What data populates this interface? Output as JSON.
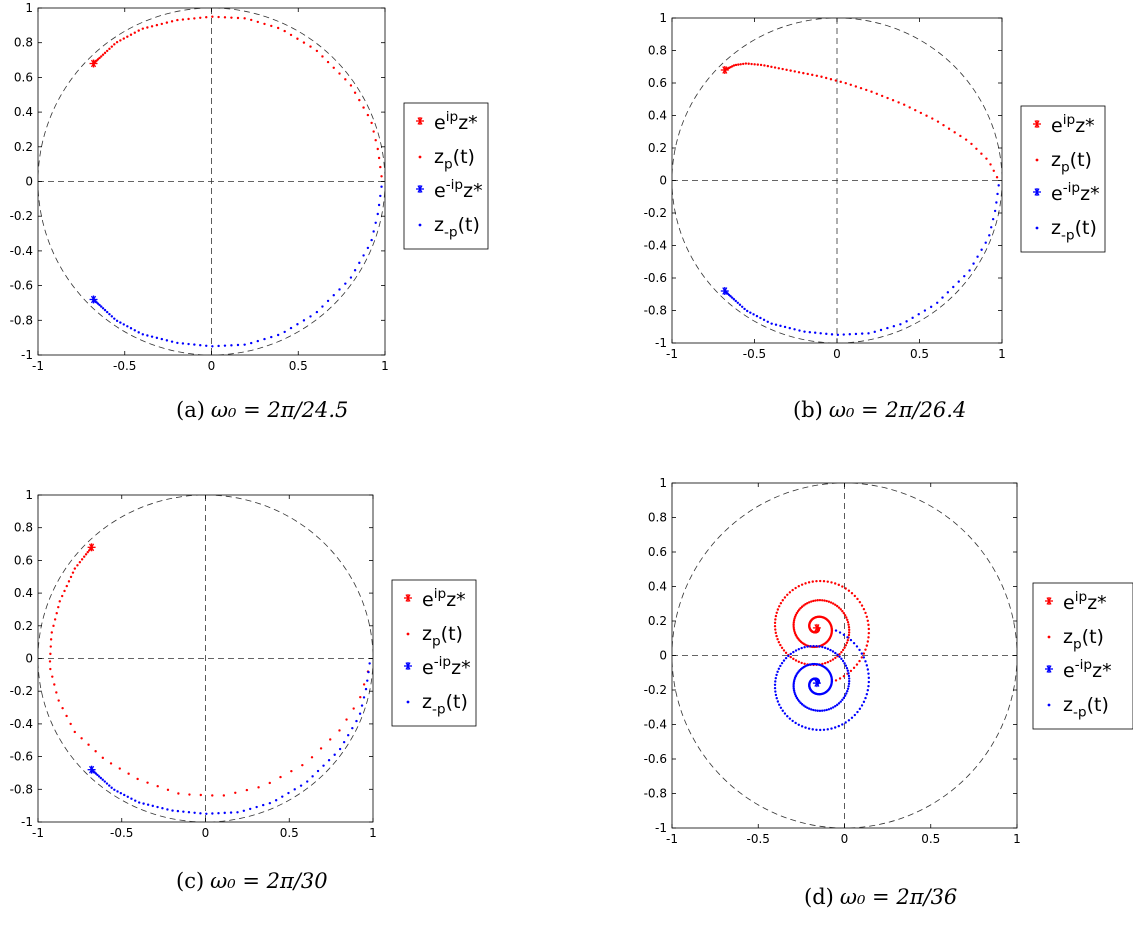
{
  "chart_data": [
    {
      "type": "scatter",
      "panel": "a",
      "caption": {
        "label": "(a)",
        "math": "ω₀ = 2π/24.5"
      },
      "xlim": [
        -1,
        1
      ],
      "ylim": [
        -1,
        1
      ],
      "xticks": [
        "-1",
        "-0.5",
        "0",
        "0.5",
        "1"
      ],
      "yticks": [
        "-1",
        "-0.8",
        "-0.6",
        "-0.4",
        "-0.2",
        "0",
        "0.2",
        "0.4",
        "0.6",
        "0.8",
        "1"
      ],
      "grid": false,
      "reference": [
        "unit circle (dashed)",
        "real axis (dashed)",
        "imaginary axis (dashed)"
      ],
      "legend": {
        "position": "right",
        "entries": [
          {
            "marker": "*",
            "color": "#ff0000",
            "text": "e^{ip}z*"
          },
          {
            "marker": ".",
            "color": "#ff0000",
            "text": "z_p(t)"
          },
          {
            "marker": "*",
            "color": "#0000ff",
            "text": "e^{-ip}z*"
          },
          {
            "marker": ".",
            "color": "#0000ff",
            "text": "z_{-p}(t)"
          }
        ]
      },
      "star_points": [
        {
          "series": "e^{ip}z*",
          "x": -0.68,
          "y": 0.68,
          "color": "#ff0000"
        },
        {
          "series": "e^{-ip}z*",
          "x": -0.68,
          "y": -0.68,
          "color": "#0000ff"
        }
      ],
      "trajectories": [
        {
          "series": "z_p(t)",
          "color": "#ff0000",
          "kind": "path",
          "waypoints": [
            [
              -0.68,
              0.68
            ],
            [
              -0.55,
              0.8
            ],
            [
              -0.4,
              0.88
            ],
            [
              -0.2,
              0.93
            ],
            [
              0.0,
              0.95
            ],
            [
              0.2,
              0.94
            ],
            [
              0.4,
              0.88
            ],
            [
              0.6,
              0.76
            ],
            [
              0.8,
              0.56
            ],
            [
              0.92,
              0.35
            ],
            [
              0.96,
              0.18
            ],
            [
              0.98,
              0.03
            ]
          ]
        },
        {
          "series": "z_{-p}(t)",
          "color": "#0000ff",
          "kind": "path",
          "waypoints": [
            [
              -0.68,
              -0.68
            ],
            [
              -0.55,
              -0.8
            ],
            [
              -0.4,
              -0.88
            ],
            [
              -0.2,
              -0.93
            ],
            [
              0.0,
              -0.95
            ],
            [
              0.2,
              -0.94
            ],
            [
              0.4,
              -0.88
            ],
            [
              0.6,
              -0.76
            ],
            [
              0.8,
              -0.56
            ],
            [
              0.92,
              -0.35
            ],
            [
              0.96,
              -0.18
            ],
            [
              0.98,
              -0.03
            ]
          ]
        }
      ]
    },
    {
      "type": "scatter",
      "panel": "b",
      "caption": {
        "label": "(b)",
        "math": "ω₀ = 2π/26.4"
      },
      "xlim": [
        -1,
        1
      ],
      "ylim": [
        -1,
        1
      ],
      "xticks": [
        "-1",
        "-0.5",
        "0",
        "0.5",
        "1"
      ],
      "yticks": [
        "-1",
        "-0.8",
        "-0.6",
        "-0.4",
        "-0.2",
        "0",
        "0.2",
        "0.4",
        "0.6",
        "0.8",
        "1"
      ],
      "grid": false,
      "reference": [
        "unit circle (dashed)",
        "real axis (dashed)",
        "imaginary axis (dashed)"
      ],
      "legend": {
        "position": "right",
        "entries": [
          {
            "marker": "*",
            "color": "#ff0000",
            "text": "e^{ip}z*"
          },
          {
            "marker": ".",
            "color": "#ff0000",
            "text": "z_p(t)"
          },
          {
            "marker": "*",
            "color": "#0000ff",
            "text": "e^{-ip}z*"
          },
          {
            "marker": ".",
            "color": "#0000ff",
            "text": "z_{-p}(t)"
          }
        ]
      },
      "star_points": [
        {
          "series": "e^{ip}z*",
          "x": -0.68,
          "y": 0.68,
          "color": "#ff0000"
        },
        {
          "series": "e^{-ip}z*",
          "x": -0.68,
          "y": -0.68,
          "color": "#0000ff"
        }
      ],
      "trajectories": [
        {
          "series": "z_p(t)",
          "color": "#ff0000",
          "kind": "path",
          "waypoints": [
            [
              -0.68,
              0.68
            ],
            [
              -0.62,
              0.71
            ],
            [
              -0.55,
              0.72
            ],
            [
              -0.45,
              0.71
            ],
            [
              -0.3,
              0.68
            ],
            [
              -0.1,
              0.64
            ],
            [
              0.05,
              0.6
            ],
            [
              0.2,
              0.55
            ],
            [
              0.4,
              0.47
            ],
            [
              0.6,
              0.37
            ],
            [
              0.8,
              0.24
            ],
            [
              0.92,
              0.12
            ],
            [
              0.97,
              0.02
            ]
          ]
        },
        {
          "series": "z_{-p}(t)",
          "color": "#0000ff",
          "kind": "path",
          "waypoints": [
            [
              -0.68,
              -0.68
            ],
            [
              -0.55,
              -0.8
            ],
            [
              -0.4,
              -0.88
            ],
            [
              -0.2,
              -0.93
            ],
            [
              0.0,
              -0.95
            ],
            [
              0.2,
              -0.94
            ],
            [
              0.4,
              -0.88
            ],
            [
              0.6,
              -0.76
            ],
            [
              0.8,
              -0.56
            ],
            [
              0.92,
              -0.35
            ],
            [
              0.96,
              -0.18
            ],
            [
              0.98,
              -0.03
            ]
          ]
        }
      ]
    },
    {
      "type": "scatter",
      "panel": "c",
      "caption": {
        "label": "(c)",
        "math": "ω₀ = 2π/30"
      },
      "xlim": [
        -1,
        1
      ],
      "ylim": [
        -1,
        1
      ],
      "xticks": [
        "-1",
        "-0.5",
        "0",
        "0.5",
        "1"
      ],
      "yticks": [
        "-1",
        "-0.8",
        "-0.6",
        "-0.4",
        "-0.2",
        "0",
        "0.2",
        "0.4",
        "0.6",
        "0.8",
        "1"
      ],
      "grid": false,
      "reference": [
        "unit circle (dashed)",
        "real axis (dashed)",
        "imaginary axis (dashed)"
      ],
      "legend": {
        "position": "right",
        "entries": [
          {
            "marker": "*",
            "color": "#ff0000",
            "text": "e^{ip}z*"
          },
          {
            "marker": ".",
            "color": "#ff0000",
            "text": "z_p(t)"
          },
          {
            "marker": "*",
            "color": "#0000ff",
            "text": "e^{-ip}z*"
          },
          {
            "marker": ".",
            "color": "#0000ff",
            "text": "z_{-p}(t)"
          }
        ]
      },
      "star_points": [
        {
          "series": "e^{ip}z*",
          "x": -0.68,
          "y": 0.68,
          "color": "#ff0000"
        },
        {
          "series": "e^{-ip}z*",
          "x": -0.68,
          "y": -0.68,
          "color": "#0000ff"
        }
      ],
      "trajectories": [
        {
          "series": "z_p(t)",
          "color": "#ff0000",
          "kind": "path",
          "waypoints": [
            [
              -0.68,
              0.68
            ],
            [
              -0.78,
              0.55
            ],
            [
              -0.87,
              0.35
            ],
            [
              -0.92,
              0.15
            ],
            [
              -0.93,
              -0.05
            ],
            [
              -0.88,
              -0.25
            ],
            [
              -0.78,
              -0.45
            ],
            [
              -0.6,
              -0.62
            ],
            [
              -0.4,
              -0.74
            ],
            [
              -0.15,
              -0.83
            ],
            [
              0.1,
              -0.84
            ],
            [
              0.35,
              -0.78
            ],
            [
              0.6,
              -0.64
            ],
            [
              0.8,
              -0.44
            ],
            [
              0.92,
              -0.25
            ],
            [
              0.97,
              -0.08
            ]
          ]
        },
        {
          "series": "z_{-p}(t)",
          "color": "#0000ff",
          "kind": "path",
          "waypoints": [
            [
              -0.68,
              -0.68
            ],
            [
              -0.55,
              -0.8
            ],
            [
              -0.4,
              -0.88
            ],
            [
              -0.2,
              -0.93
            ],
            [
              0.0,
              -0.95
            ],
            [
              0.2,
              -0.94
            ],
            [
              0.4,
              -0.88
            ],
            [
              0.6,
              -0.76
            ],
            [
              0.8,
              -0.56
            ],
            [
              0.92,
              -0.35
            ],
            [
              0.96,
              -0.18
            ],
            [
              0.98,
              -0.03
            ]
          ]
        }
      ]
    },
    {
      "type": "scatter",
      "panel": "d",
      "caption": {
        "label": "(d)",
        "math": "ω₀ = 2π/36"
      },
      "xlim": [
        -1,
        1
      ],
      "ylim": [
        -1,
        1
      ],
      "xticks": [
        "-1",
        "-0.5",
        "0",
        "0.5",
        "1"
      ],
      "yticks": [
        "-1",
        "-0.8",
        "-0.6",
        "-0.4",
        "-0.2",
        "0",
        "0.2",
        "0.4",
        "0.6",
        "0.8",
        "1"
      ],
      "grid": false,
      "reference": [
        "unit circle (dashed)",
        "real axis (dashed)",
        "imaginary axis (dashed)"
      ],
      "legend": {
        "position": "right",
        "entries": [
          {
            "marker": "*",
            "color": "#ff0000",
            "text": "e^{ip}z*"
          },
          {
            "marker": ".",
            "color": "#ff0000",
            "text": "z_p(t)"
          },
          {
            "marker": "*",
            "color": "#0000ff",
            "text": "e^{-ip}z*"
          },
          {
            "marker": ".",
            "color": "#0000ff",
            "text": "z_{-p}(t)"
          }
        ]
      },
      "star_points": [
        {
          "series": "e^{ip}z*",
          "x": -0.16,
          "y": 0.16,
          "color": "#ff0000"
        },
        {
          "series": "e^{-ip}z*",
          "x": -0.16,
          "y": -0.16,
          "color": "#0000ff"
        }
      ],
      "trajectories": [
        {
          "series": "z_p(t)",
          "color": "#ff0000",
          "kind": "spiral",
          "center": [
            -0.16,
            0.16
          ],
          "r0": 0.32,
          "turns": 3.3,
          "theta0_deg": -70,
          "direction": 1
        },
        {
          "series": "z_{-p}(t)",
          "color": "#0000ff",
          "kind": "spiral",
          "center": [
            -0.16,
            -0.16
          ],
          "r0": 0.32,
          "turns": 3.3,
          "theta0_deg": 70,
          "direction": -1
        }
      ]
    }
  ]
}
